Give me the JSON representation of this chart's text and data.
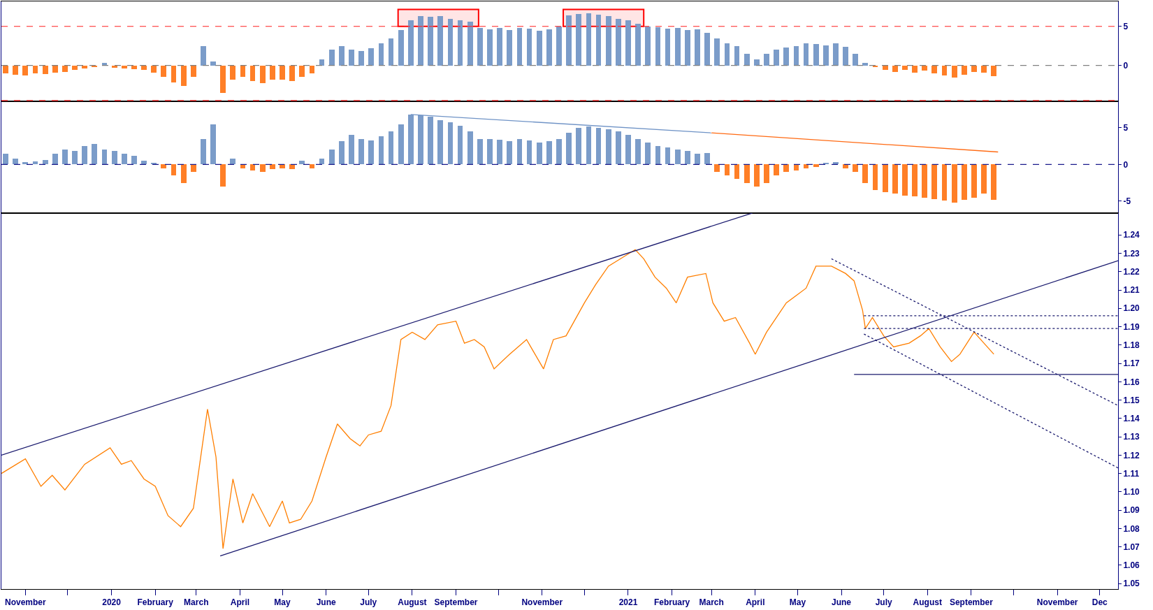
{
  "chart_data": [
    {
      "type": "bar",
      "xlim": [
        "2019-10-15",
        "2021-12-14"
      ],
      "ylim": [
        -4.6,
        8.2
      ],
      "yticks": [
        0,
        5
      ],
      "tick_labels": "y",
      "ref_lines": [
        {
          "axis": "y",
          "value": 5,
          "color": "#ff2020",
          "line_style": "dashed"
        },
        {
          "axis": "y",
          "value": -4.5,
          "color": "#ff2020",
          "line_style": "dashed"
        },
        {
          "axis": "y",
          "value": 0,
          "color": "#808080",
          "line_style": "dashed"
        }
      ],
      "bands": [
        {
          "axis": "x",
          "from": "2020-07-22",
          "to": "2020-09-17",
          "color": "#ff0000"
        },
        {
          "axis": "x",
          "from": "2020-11-16",
          "to": "2021-01-12",
          "color": "#ff0000"
        }
      ],
      "series": [
        {
          "x": [
            "2019-10-18",
            "2019-10-25",
            "2019-11-01",
            "2019-11-08",
            "2019-11-15",
            "2019-11-22",
            "2019-11-29",
            "2019-12-06",
            "2019-12-13",
            "2019-12-20",
            "2019-12-27",
            "2020-01-03",
            "2020-01-10",
            "2020-01-17",
            "2020-01-24",
            "2020-01-31",
            "2020-02-07",
            "2020-02-14",
            "2020-02-21",
            "2020-02-28",
            "2020-03-06",
            "2020-03-13",
            "2020-03-20",
            "2020-03-27",
            "2020-04-03",
            "2020-04-10",
            "2020-04-17",
            "2020-04-24",
            "2020-05-01",
            "2020-05-08",
            "2020-05-15",
            "2020-05-22",
            "2020-05-29",
            "2020-06-05",
            "2020-06-12",
            "2020-06-19",
            "2020-06-26",
            "2020-07-03",
            "2020-07-10",
            "2020-07-17",
            "2020-07-24",
            "2020-07-31",
            "2020-08-07",
            "2020-08-14",
            "2020-08-21",
            "2020-08-28",
            "2020-09-04",
            "2020-09-11",
            "2020-09-18",
            "2020-09-25",
            "2020-10-02",
            "2020-10-09",
            "2020-10-16",
            "2020-10-23",
            "2020-10-30",
            "2020-11-06",
            "2020-11-13",
            "2020-11-20",
            "2020-11-27",
            "2020-12-04",
            "2020-12-11",
            "2020-12-18",
            "2020-12-25",
            "2021-01-01",
            "2021-01-08",
            "2021-01-15",
            "2021-01-22",
            "2021-01-29",
            "2021-02-05",
            "2021-02-12",
            "2021-02-19",
            "2021-02-26",
            "2021-03-05",
            "2021-03-12",
            "2021-03-19",
            "2021-03-26",
            "2021-04-02",
            "2021-04-09",
            "2021-04-16",
            "2021-04-23",
            "2021-04-30",
            "2021-05-07",
            "2021-05-14",
            "2021-05-21",
            "2021-05-28",
            "2021-06-04",
            "2021-06-11",
            "2021-06-18",
            "2021-06-25",
            "2021-07-02",
            "2021-07-09",
            "2021-07-16",
            "2021-07-23",
            "2021-07-30",
            "2021-08-06",
            "2021-08-13",
            "2021-08-20",
            "2021-08-27",
            "2021-09-03",
            "2021-09-10",
            "2021-09-17"
          ],
          "values": [
            -1.0,
            -1.2,
            -1.3,
            -1.0,
            -1.1,
            -0.9,
            -0.8,
            -0.6,
            -0.4,
            -0.2,
            0.3,
            -0.3,
            -0.4,
            -0.5,
            -0.6,
            -0.9,
            -1.5,
            -2.2,
            -2.6,
            -1.5,
            2.5,
            0.5,
            -3.5,
            -1.8,
            -1.5,
            -2.0,
            -2.3,
            -1.8,
            -1.8,
            -2.0,
            -1.5,
            -1.0,
            0.8,
            2.0,
            2.5,
            2.0,
            1.8,
            2.2,
            2.8,
            3.5,
            4.5,
            5.8,
            6.3,
            6.2,
            6.3,
            6.0,
            5.8,
            5.6,
            4.8,
            4.6,
            4.8,
            4.5,
            4.8,
            4.7,
            4.4,
            4.6,
            5.0,
            6.4,
            6.6,
            6.7,
            6.5,
            6.3,
            6.0,
            5.8,
            5.3,
            5.0,
            4.9,
            4.7,
            4.8,
            4.5,
            4.6,
            4.2,
            3.5,
            2.8,
            2.5,
            1.5,
            0.8,
            1.5,
            2.0,
            2.3,
            2.5,
            2.8,
            2.7,
            2.6,
            2.8,
            2.4,
            1.5,
            0.3,
            -0.2,
            -0.6,
            -0.8,
            -0.6,
            -0.9,
            -0.7,
            -1.0,
            -1.3,
            -1.6,
            -1.2,
            -0.8,
            -0.9,
            -1.4
          ],
          "colors": [
            "#ff7f27",
            "#ff7f27",
            "#ff7f27",
            "#ff7f27",
            "#ff7f27",
            "#ff7f27",
            "#ff7f27",
            "#ff7f27",
            "#ff7f27",
            "#ff7f27",
            "#7b9cc9",
            "#ff7f27",
            "#ff7f27",
            "#ff7f27",
            "#ff7f27",
            "#ff7f27",
            "#ff7f27",
            "#ff7f27",
            "#ff7f27",
            "#ff7f27",
            "#7b9cc9",
            "#7b9cc9",
            "#ff7f27",
            "#ff7f27",
            "#ff7f27",
            "#ff7f27",
            "#ff7f27",
            "#ff7f27",
            "#ff7f27",
            "#ff7f27",
            "#ff7f27",
            "#ff7f27",
            "#7b9cc9",
            "#7b9cc9",
            "#7b9cc9",
            "#7b9cc9",
            "#7b9cc9",
            "#7b9cc9",
            "#7b9cc9",
            "#7b9cc9",
            "#7b9cc9",
            "#7b9cc9",
            "#7b9cc9",
            "#7b9cc9",
            "#7b9cc9",
            "#7b9cc9",
            "#7b9cc9",
            "#7b9cc9",
            "#7b9cc9",
            "#7b9cc9",
            "#7b9cc9",
            "#7b9cc9",
            "#7b9cc9",
            "#7b9cc9",
            "#7b9cc9",
            "#7b9cc9",
            "#7b9cc9",
            "#7b9cc9",
            "#7b9cc9",
            "#7b9cc9",
            "#7b9cc9",
            "#7b9cc9",
            "#7b9cc9",
            "#7b9cc9",
            "#7b9cc9",
            "#7b9cc9",
            "#7b9cc9",
            "#7b9cc9",
            "#7b9cc9",
            "#7b9cc9",
            "#7b9cc9",
            "#7b9cc9",
            "#7b9cc9",
            "#7b9cc9",
            "#7b9cc9",
            "#7b9cc9",
            "#7b9cc9",
            "#7b9cc9",
            "#7b9cc9",
            "#7b9cc9",
            "#7b9cc9",
            "#7b9cc9",
            "#7b9cc9",
            "#7b9cc9",
            "#7b9cc9",
            "#7b9cc9",
            "#7b9cc9",
            "#7b9cc9",
            "#ff7f27",
            "#ff7f27",
            "#ff7f27",
            "#ff7f27",
            "#ff7f27",
            "#ff7f27",
            "#ff7f27",
            "#ff7f27",
            "#ff7f27",
            "#ff7f27",
            "#ff7f27",
            "#ff7f27",
            "#ff7f27"
          ]
        }
      ]
    },
    {
      "type": "bar",
      "xlim": [
        "2019-10-15",
        "2021-12-14"
      ],
      "ylim": [
        -6.6,
        8.6
      ],
      "yticks": [
        -5,
        0,
        5
      ],
      "tick_labels": "y",
      "ref_lines": [
        {
          "axis": "y",
          "value": 0,
          "color": "#1a1a8c",
          "line_style": "dashed"
        }
      ],
      "series": [
        {
          "x": [
            "2019-10-18",
            "2019-10-25",
            "2019-11-01",
            "2019-11-08",
            "2019-11-15",
            "2019-11-22",
            "2019-11-29",
            "2019-12-06",
            "2019-12-13",
            "2019-12-20",
            "2019-12-27",
            "2020-01-03",
            "2020-01-10",
            "2020-01-17",
            "2020-01-24",
            "2020-01-31",
            "2020-02-07",
            "2020-02-14",
            "2020-02-21",
            "2020-02-28",
            "2020-03-06",
            "2020-03-13",
            "2020-03-20",
            "2020-03-27",
            "2020-04-03",
            "2020-04-10",
            "2020-04-17",
            "2020-04-24",
            "2020-05-01",
            "2020-05-08",
            "2020-05-15",
            "2020-05-22",
            "2020-05-29",
            "2020-06-05",
            "2020-06-12",
            "2020-06-19",
            "2020-06-26",
            "2020-07-03",
            "2020-07-10",
            "2020-07-17",
            "2020-07-24",
            "2020-07-31",
            "2020-08-07",
            "2020-08-14",
            "2020-08-21",
            "2020-08-28",
            "2020-09-04",
            "2020-09-11",
            "2020-09-18",
            "2020-09-25",
            "2020-10-02",
            "2020-10-09",
            "2020-10-16",
            "2020-10-23",
            "2020-10-30",
            "2020-11-06",
            "2020-11-13",
            "2020-11-20",
            "2020-11-27",
            "2020-12-04",
            "2020-12-11",
            "2020-12-18",
            "2020-12-25",
            "2021-01-01",
            "2021-01-08",
            "2021-01-15",
            "2021-01-22",
            "2021-01-29",
            "2021-02-05",
            "2021-02-12",
            "2021-02-19",
            "2021-02-26",
            "2021-03-05",
            "2021-03-12",
            "2021-03-19",
            "2021-03-26",
            "2021-04-02",
            "2021-04-09",
            "2021-04-16",
            "2021-04-23",
            "2021-04-30",
            "2021-05-07",
            "2021-05-14",
            "2021-05-21",
            "2021-05-28",
            "2021-06-04",
            "2021-06-11",
            "2021-06-18",
            "2021-06-25",
            "2021-07-02",
            "2021-07-09",
            "2021-07-16",
            "2021-07-23",
            "2021-07-30",
            "2021-08-06",
            "2021-08-13",
            "2021-08-20",
            "2021-08-27",
            "2021-09-03",
            "2021-09-10",
            "2021-09-17"
          ],
          "values": [
            1.5,
            0.8,
            0.3,
            0.4,
            0.6,
            1.5,
            2.0,
            1.8,
            2.5,
            2.8,
            2.0,
            1.8,
            1.5,
            1.2,
            0.5,
            0.2,
            -0.5,
            -1.5,
            -2.5,
            -1.0,
            3.5,
            5.5,
            -3.0,
            0.8,
            -0.5,
            -0.8,
            -1.0,
            -0.6,
            -0.5,
            -0.6,
            0.5,
            -0.5,
            0.8,
            2.0,
            3.2,
            4.0,
            3.5,
            3.3,
            3.8,
            4.5,
            5.5,
            6.8,
            6.7,
            6.5,
            6.0,
            5.7,
            5.3,
            4.5,
            3.5,
            3.5,
            3.4,
            3.2,
            3.5,
            3.3,
            3.0,
            3.2,
            3.5,
            4.3,
            5.0,
            5.2,
            5.0,
            4.8,
            4.5,
            4.0,
            3.5,
            3.0,
            2.5,
            2.3,
            2.0,
            1.8,
            1.5,
            1.6,
            -1.0,
            -1.5,
            -2.0,
            -2.5,
            -3.0,
            -2.5,
            -1.5,
            -1.0,
            -0.8,
            -0.5,
            -0.3,
            0.2,
            0.3,
            -0.5,
            -1.0,
            -2.5,
            -3.5,
            -3.8,
            -4.0,
            -4.2,
            -4.3,
            -4.5,
            -4.7,
            -4.9,
            -5.2,
            -4.8,
            -4.5,
            -4.0,
            -4.8
          ],
          "colors": [
            "#7b9cc9",
            "#7b9cc9",
            "#7b9cc9",
            "#7b9cc9",
            "#7b9cc9",
            "#7b9cc9",
            "#7b9cc9",
            "#7b9cc9",
            "#7b9cc9",
            "#7b9cc9",
            "#7b9cc9",
            "#7b9cc9",
            "#7b9cc9",
            "#7b9cc9",
            "#7b9cc9",
            "#7b9cc9",
            "#ff7f27",
            "#ff7f27",
            "#ff7f27",
            "#ff7f27",
            "#7b9cc9",
            "#7b9cc9",
            "#ff7f27",
            "#7b9cc9",
            "#ff7f27",
            "#ff7f27",
            "#ff7f27",
            "#ff7f27",
            "#ff7f27",
            "#ff7f27",
            "#7b9cc9",
            "#ff7f27",
            "#7b9cc9",
            "#7b9cc9",
            "#7b9cc9",
            "#7b9cc9",
            "#7b9cc9",
            "#7b9cc9",
            "#7b9cc9",
            "#7b9cc9",
            "#7b9cc9",
            "#7b9cc9",
            "#7b9cc9",
            "#7b9cc9",
            "#7b9cc9",
            "#7b9cc9",
            "#7b9cc9",
            "#7b9cc9",
            "#7b9cc9",
            "#7b9cc9",
            "#7b9cc9",
            "#7b9cc9",
            "#7b9cc9",
            "#7b9cc9",
            "#7b9cc9",
            "#7b9cc9",
            "#7b9cc9",
            "#7b9cc9",
            "#7b9cc9",
            "#7b9cc9",
            "#7b9cc9",
            "#7b9cc9",
            "#7b9cc9",
            "#7b9cc9",
            "#7b9cc9",
            "#7b9cc9",
            "#7b9cc9",
            "#7b9cc9",
            "#7b9cc9",
            "#7b9cc9",
            "#7b9cc9",
            "#7b9cc9",
            "#ff7f27",
            "#ff7f27",
            "#ff7f27",
            "#ff7f27",
            "#ff7f27",
            "#ff7f27",
            "#ff7f27",
            "#ff7f27",
            "#ff7f27",
            "#ff7f27",
            "#ff7f27",
            "#7b9cc9",
            "#7b9cc9",
            "#ff7f27",
            "#ff7f27",
            "#ff7f27",
            "#ff7f27",
            "#ff7f27",
            "#ff7f27",
            "#ff7f27",
            "#ff7f27",
            "#ff7f27",
            "#ff7f27",
            "#ff7f27",
            "#ff7f27",
            "#ff7f27",
            "#ff7f27",
            "#ff7f27",
            "#ff7f27"
          ]
        },
        {
          "type": "line",
          "x": [
            "2020-07-31",
            "2021-03-01"
          ],
          "values": [
            6.8,
            4.3
          ],
          "color": "#6f93c6",
          "line_style": "solid"
        },
        {
          "type": "line",
          "x": [
            "2021-03-01",
            "2021-09-20"
          ],
          "values": [
            4.3,
            1.7
          ],
          "color": "#ff6a13",
          "line_style": "solid"
        }
      ]
    },
    {
      "type": "line",
      "xlim": [
        "2019-10-15",
        "2021-12-14"
      ],
      "ylim": [
        1.047,
        1.252
      ],
      "yticks": [
        1.05,
        1.06,
        1.07,
        1.08,
        1.09,
        {
          "value": 1.1,
          "label": "1.10"
        },
        1.11,
        1.12,
        1.13,
        1.14,
        1.15,
        1.16,
        1.17,
        1.18,
        1.19,
        {
          "value": 1.2,
          "label": "1.20"
        },
        1.21,
        1.22,
        1.23,
        1.24
      ],
      "xticks": [
        {
          "value": "2019-11-01",
          "label": "November"
        },
        {
          "value": "2019-12-01",
          "label": null
        },
        {
          "value": "2020-01-01",
          "label": "2020"
        },
        {
          "value": "2020-02-01",
          "label": "February"
        },
        {
          "value": "2020-03-01",
          "label": "March"
        },
        {
          "value": "2020-04-01",
          "label": "April"
        },
        {
          "value": "2020-05-01",
          "label": "May"
        },
        {
          "value": "2020-06-01",
          "label": "June"
        },
        {
          "value": "2020-07-01",
          "label": "July"
        },
        {
          "value": "2020-08-01",
          "label": "August"
        },
        {
          "value": "2020-09-01",
          "label": "September"
        },
        {
          "value": "2020-10-01",
          "label": null
        },
        {
          "value": "2020-11-01",
          "label": "November"
        },
        {
          "value": "2020-12-01",
          "label": null
        },
        {
          "value": "2021-01-01",
          "label": "2021"
        },
        {
          "value": "2021-02-01",
          "label": "February"
        },
        {
          "value": "2021-03-01",
          "label": "March"
        },
        {
          "value": "2021-04-01",
          "label": "April"
        },
        {
          "value": "2021-05-01",
          "label": "May"
        },
        {
          "value": "2021-06-01",
          "label": "June"
        },
        {
          "value": "2021-07-01",
          "label": "July"
        },
        {
          "value": "2021-08-01",
          "label": "August"
        },
        {
          "value": "2021-09-01",
          "label": "September"
        },
        {
          "value": "2021-10-01",
          "label": null
        },
        {
          "value": "2021-11-01",
          "label": "November"
        },
        {
          "value": "2021-12-01",
          "label": "Dec"
        }
      ],
      "series": [
        {
          "color": "#ff7f00",
          "line_style": "solid",
          "x": [
            "2019-10-15",
            "2019-11-01",
            "2019-11-12",
            "2019-11-20",
            "2019-11-29",
            "2019-12-13",
            "2019-12-31",
            "2020-01-08",
            "2020-01-15",
            "2020-01-24",
            "2020-02-01",
            "2020-02-10",
            "2020-02-19",
            "2020-02-28",
            "2020-03-09",
            "2020-03-15",
            "2020-03-20",
            "2020-03-27",
            "2020-04-03",
            "2020-04-10",
            "2020-04-22",
            "2020-05-01",
            "2020-05-06",
            "2020-05-14",
            "2020-05-22",
            "2020-06-01",
            "2020-06-09",
            "2020-06-18",
            "2020-06-25",
            "2020-07-01",
            "2020-07-10",
            "2020-07-17",
            "2020-07-24",
            "2020-08-01",
            "2020-08-10",
            "2020-08-19",
            "2020-09-01",
            "2020-09-07",
            "2020-09-14",
            "2020-09-21",
            "2020-09-28",
            "2020-10-09",
            "2020-10-21",
            "2020-11-02",
            "2020-11-09",
            "2020-11-18",
            "2020-12-01",
            "2020-12-09",
            "2020-12-18",
            "2021-01-06",
            "2021-01-12",
            "2021-01-20",
            "2021-01-28",
            "2021-02-04",
            "2021-02-12",
            "2021-02-25",
            "2021-03-02",
            "2021-03-10",
            "2021-03-18",
            "2021-03-28",
            "2021-04-01",
            "2021-04-09",
            "2021-04-16",
            "2021-04-23",
            "2021-04-30",
            "2021-05-07",
            "2021-05-14",
            "2021-05-25",
            "2021-06-04",
            "2021-06-10",
            "2021-06-16",
            "2021-06-18",
            "2021-06-23",
            "2021-07-01",
            "2021-07-08",
            "2021-07-19",
            "2021-07-27",
            "2021-08-02",
            "2021-08-10",
            "2021-08-18",
            "2021-08-24",
            "2021-09-03",
            "2021-09-10",
            "2021-09-17"
          ],
          "values": [
            1.11,
            1.118,
            1.103,
            1.109,
            1.101,
            1.115,
            1.124,
            1.115,
            1.117,
            1.107,
            1.103,
            1.087,
            1.081,
            1.091,
            1.145,
            1.119,
            1.069,
            1.107,
            1.083,
            1.099,
            1.081,
            1.095,
            1.083,
            1.085,
            1.095,
            1.119,
            1.137,
            1.129,
            1.125,
            1.131,
            1.133,
            1.147,
            1.183,
            1.187,
            1.183,
            1.191,
            1.193,
            1.181,
            1.183,
            1.179,
            1.167,
            1.175,
            1.183,
            1.167,
            1.183,
            1.185,
            1.203,
            1.213,
            1.223,
            1.232,
            1.227,
            1.217,
            1.211,
            1.203,
            1.217,
            1.219,
            1.203,
            1.193,
            1.195,
            1.181,
            1.175,
            1.187,
            1.195,
            1.203,
            1.207,
            1.211,
            1.223,
            1.223,
            1.219,
            1.215,
            1.199,
            1.189,
            1.195,
            1.185,
            1.179,
            1.181,
            1.185,
            1.189,
            1.179,
            1.171,
            1.175,
            1.187,
            1.181,
            1.175
          ]
        },
        {
          "type": "line",
          "x": [
            "2019-10-15",
            "2021-03-30"
          ],
          "values": [
            1.12,
            1.252
          ],
          "color": "#1a1a6e",
          "line_style": "solid"
        },
        {
          "type": "line",
          "x": [
            "2020-03-18",
            "2021-12-14"
          ],
          "values": [
            1.065,
            1.226
          ],
          "color": "#1a1a6e",
          "line_style": "solid"
        },
        {
          "type": "line",
          "x": [
            "2021-05-25",
            "2021-12-14"
          ],
          "values": [
            1.227,
            1.147
          ],
          "color": "#1a1a6e",
          "line_style": "dotted"
        },
        {
          "type": "line",
          "x": [
            "2021-06-17",
            "2021-12-14"
          ],
          "values": [
            1.186,
            1.113
          ],
          "color": "#1a1a6e",
          "line_style": "dotted"
        },
        {
          "type": "line",
          "x": [
            "2021-06-17",
            "2021-12-14"
          ],
          "values": [
            1.196,
            1.196
          ],
          "color": "#1a1a6e",
          "line_style": "dotted"
        },
        {
          "type": "line",
          "x": [
            "2021-06-17",
            "2021-12-14"
          ],
          "values": [
            1.189,
            1.189
          ],
          "color": "#1a1a6e",
          "line_style": "dotted"
        },
        {
          "type": "line",
          "x": [
            "2021-06-10",
            "2021-12-14"
          ],
          "values": [
            1.164,
            1.164
          ],
          "color": "#1a1a6e",
          "line_style": "solid"
        }
      ]
    }
  ]
}
